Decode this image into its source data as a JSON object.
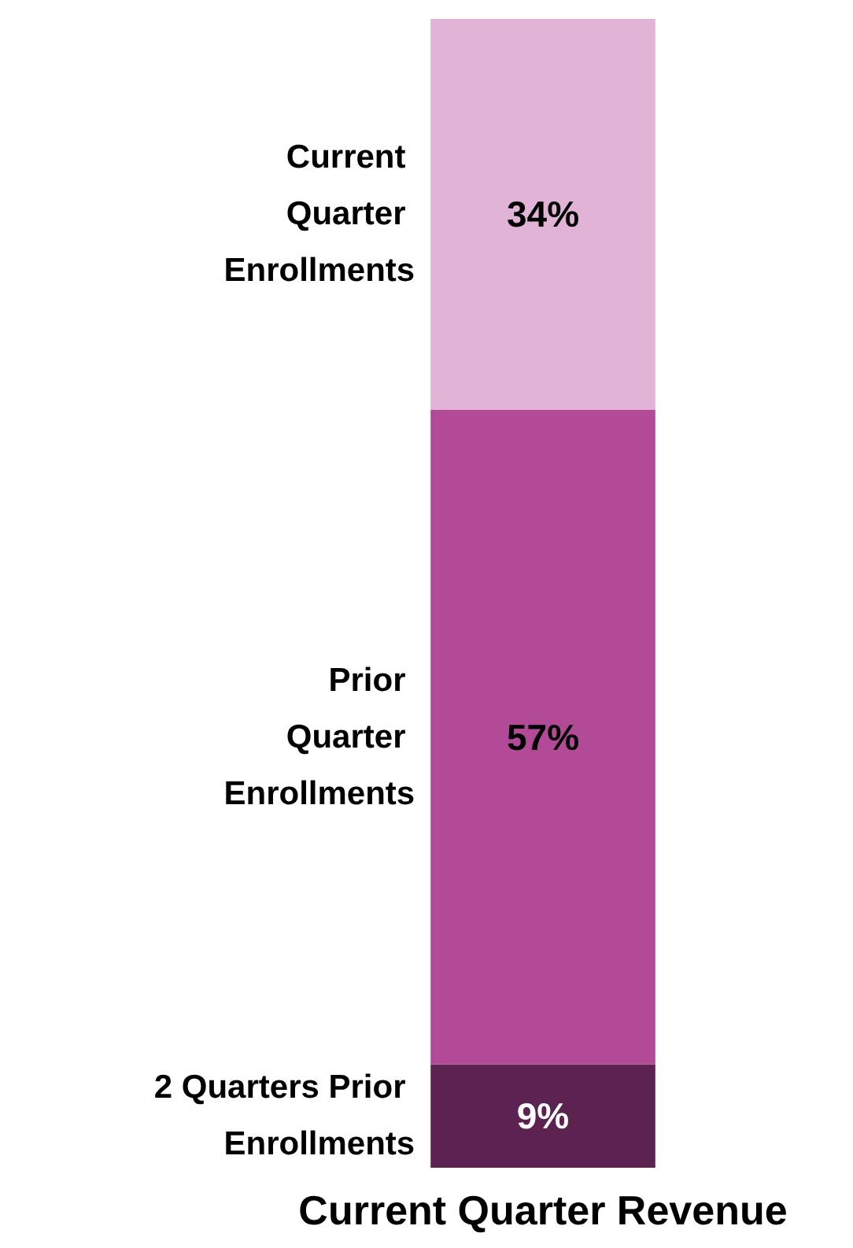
{
  "chart_data": {
    "type": "bar",
    "stacked": true,
    "categories": [
      "Current Quarter Revenue"
    ],
    "tick_labels": "x",
    "legend": false,
    "series": [
      {
        "name": "2 Quarters Prior Enrollments",
        "color": "#5c2350",
        "values": [
          9
        ],
        "value_labels": [
          "9%"
        ]
      },
      {
        "name": "Prior Quarter Enrollments",
        "color": "#b34a98",
        "values": [
          57
        ],
        "value_labels": [
          "57%"
        ]
      },
      {
        "name": "Current Quarter Enrollments",
        "color": "#e1b4d7",
        "values": [
          34
        ],
        "value_labels": [
          "34%"
        ]
      }
    ]
  }
}
